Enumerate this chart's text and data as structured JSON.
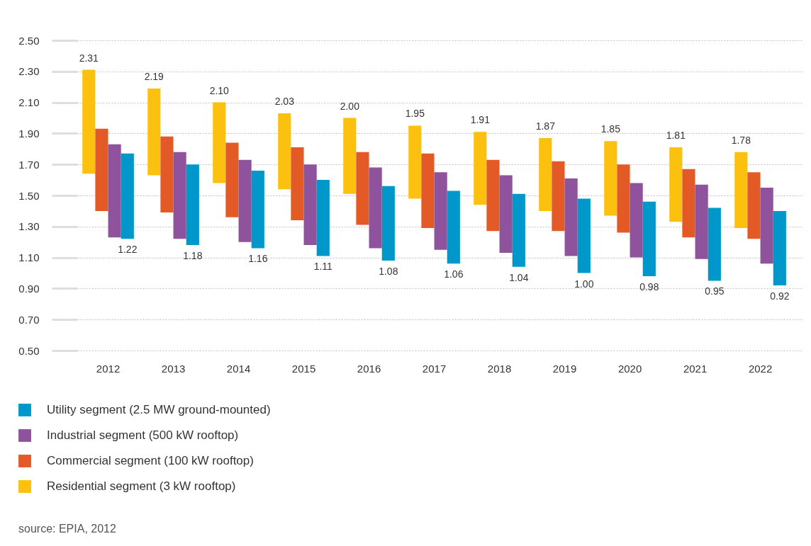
{
  "chart_data": {
    "type": "bar",
    "categories": [
      "2012",
      "2013",
      "2014",
      "2015",
      "2016",
      "2017",
      "2018",
      "2019",
      "2020",
      "2021",
      "2022"
    ],
    "series": [
      {
        "name": "Residential segment (3 kW rooftop)",
        "color": "#fcc10f",
        "base": [
          1.64,
          1.63,
          1.58,
          1.54,
          1.51,
          1.48,
          1.44,
          1.4,
          1.37,
          1.33,
          1.29
        ],
        "values": [
          0.67,
          0.56,
          0.52,
          0.49,
          0.49,
          0.47,
          0.47,
          0.47,
          0.48,
          0.48,
          0.49
        ],
        "value_labels": [
          "2.31",
          "2.19",
          "2.10",
          "2.03",
          "2.00",
          "1.95",
          "1.91",
          "1.87",
          "1.85",
          "1.81",
          "1.78"
        ]
      },
      {
        "name": "Commercial segment (100 kW rooftop)",
        "color": "#e45a27",
        "base": [
          1.4,
          1.39,
          1.36,
          1.34,
          1.31,
          1.29,
          1.27,
          1.27,
          1.26,
          1.23,
          1.22
        ],
        "values": [
          0.53,
          0.49,
          0.48,
          0.47,
          0.47,
          0.48,
          0.46,
          0.45,
          0.44,
          0.44,
          0.43
        ]
      },
      {
        "name": "Industrial segment (500 kW rooftop)",
        "color": "#8f529c",
        "base": [
          1.23,
          1.22,
          1.2,
          1.18,
          1.16,
          1.15,
          1.13,
          1.11,
          1.1,
          1.09,
          1.06
        ],
        "values": [
          0.6,
          0.56,
          0.53,
          0.52,
          0.52,
          0.5,
          0.5,
          0.5,
          0.48,
          0.48,
          0.49
        ]
      },
      {
        "name": "Utility segment (2.5 MW ground-mounted)",
        "color": "#0098cb",
        "base": [
          1.77,
          1.7,
          1.66,
          1.6,
          1.56,
          1.53,
          1.51,
          1.48,
          1.46,
          1.42,
          1.4
        ],
        "values": [
          -0.55,
          -0.52,
          -0.5,
          -0.49,
          -0.48,
          -0.47,
          -0.47,
          -0.48,
          -0.48,
          -0.47,
          -0.48
        ],
        "value_labels": [
          "1.22",
          "1.18",
          "1.16",
          "1.11",
          "1.08",
          "1.06",
          "1.04",
          "1.00",
          "0.98",
          "0.95",
          "0.92"
        ]
      }
    ],
    "ylim": [
      0.5,
      2.5
    ],
    "yticks": [
      {
        "value": 0.5,
        "label": "0.50"
      },
      {
        "value": 0.7,
        "label": "0.70"
      },
      {
        "value": 0.9,
        "label": "0.90"
      },
      {
        "value": 1.1,
        "label": "1.10"
      },
      {
        "value": 1.3,
        "label": "1.30"
      },
      {
        "value": 1.5,
        "label": "1.50"
      },
      {
        "value": 1.7,
        "label": "1.70"
      },
      {
        "value": 1.9,
        "label": "1.90"
      },
      {
        "value": 2.1,
        "label": "2.10"
      },
      {
        "value": 2.3,
        "label": "2.30"
      },
      {
        "value": 2.5,
        "label": "2.50"
      }
    ],
    "grid": "y",
    "legend": "bottom left",
    "annotations": [
      "source: EPIA, 2012"
    ]
  }
}
